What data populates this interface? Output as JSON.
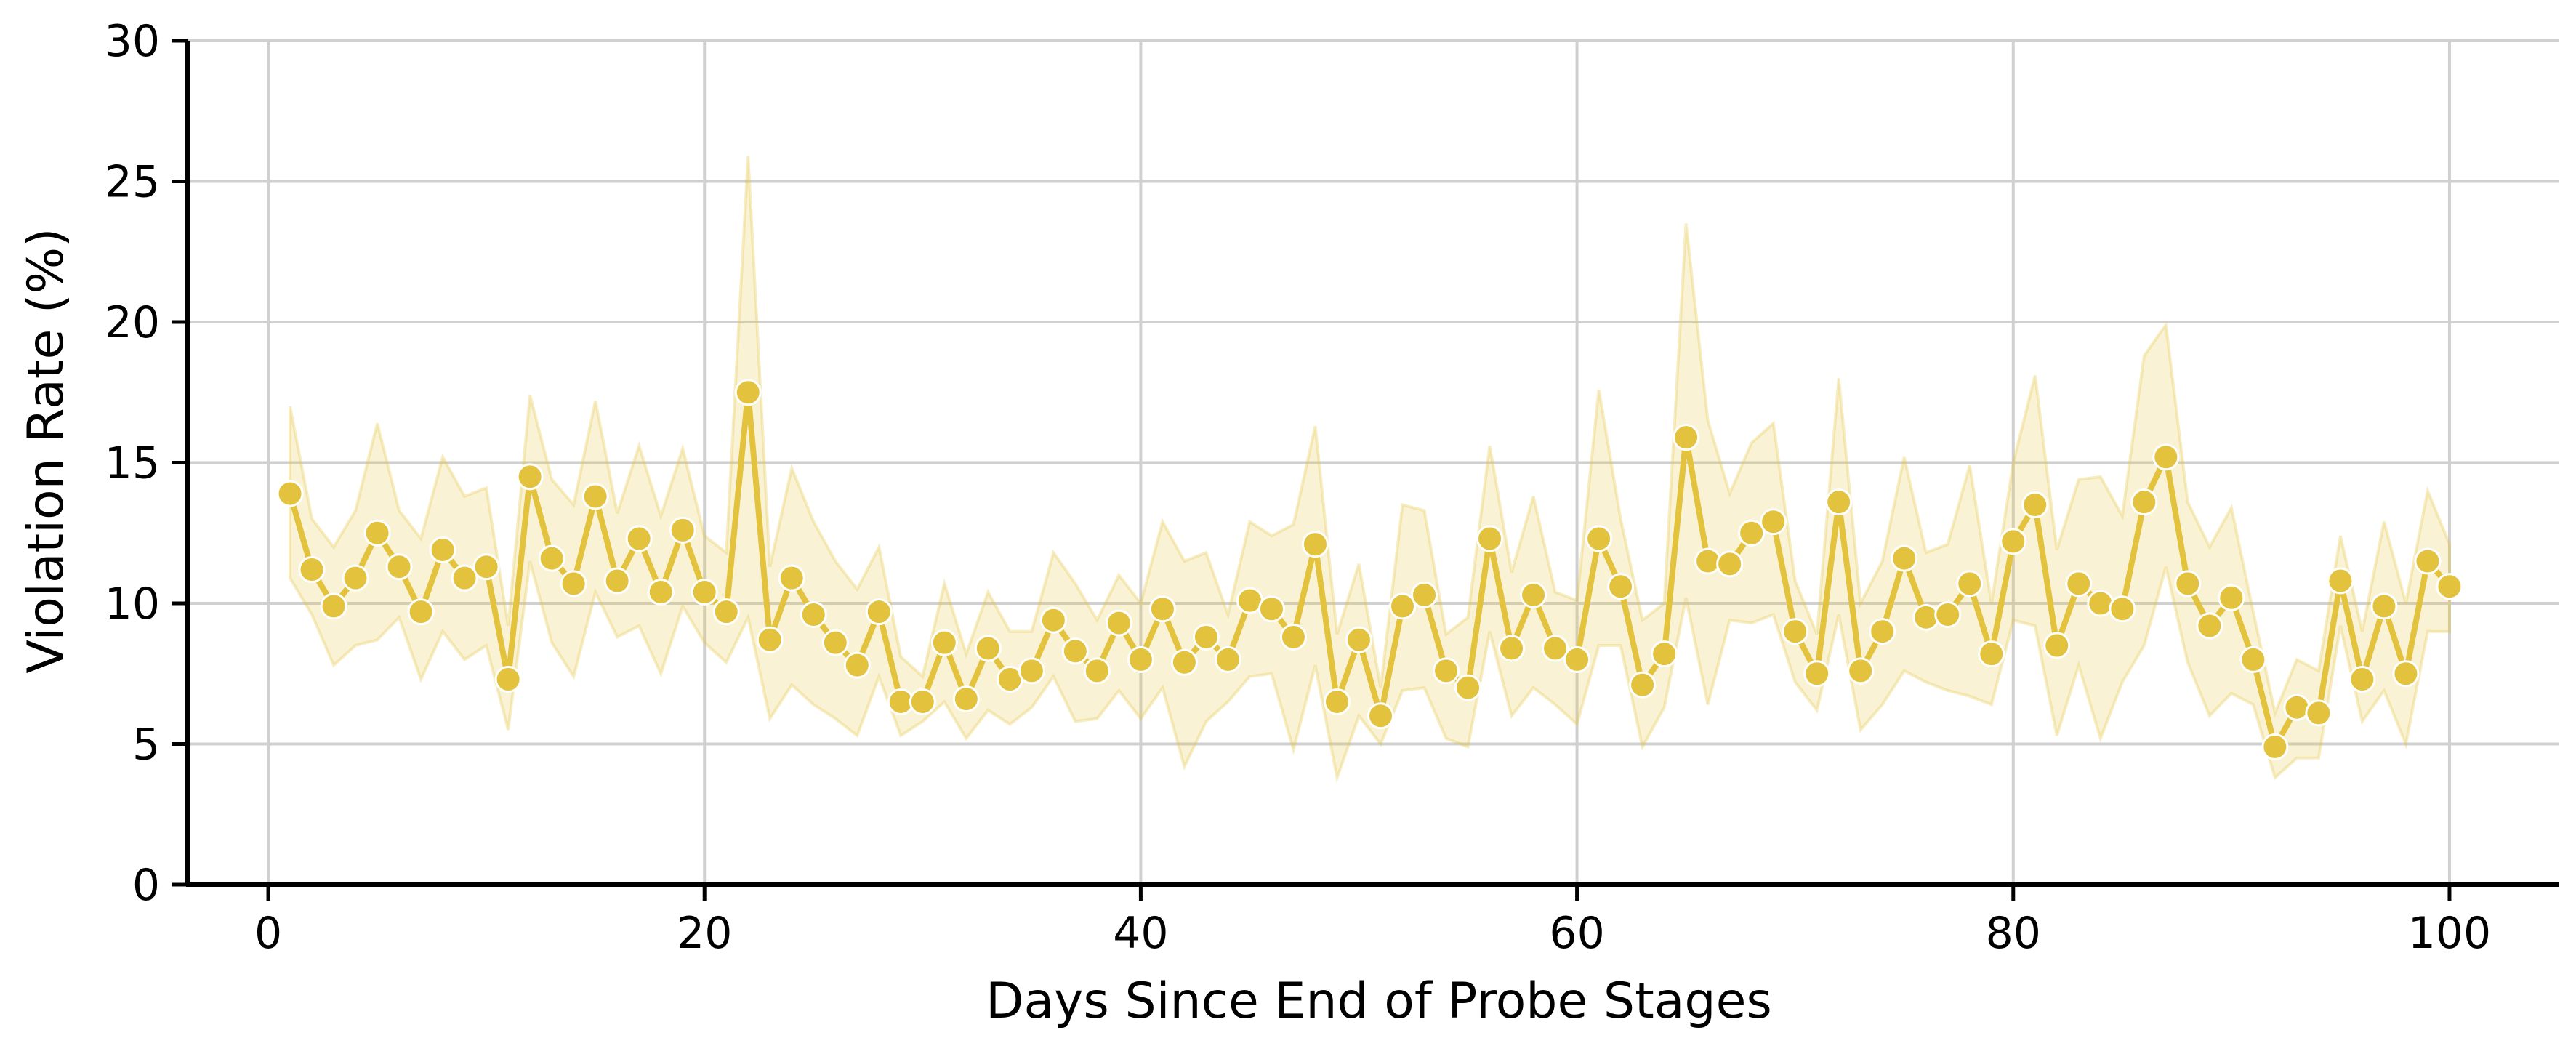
{
  "chart_data": {
    "type": "line",
    "title": "",
    "xlabel": "Days Since End of Probe Stages",
    "ylabel": "Violation Rate (%)",
    "xlim": [
      -3.7,
      105
    ],
    "ylim": [
      0,
      30
    ],
    "xticks": [
      0,
      20,
      40,
      60,
      80,
      100
    ],
    "yticks": [
      0,
      5,
      10,
      15,
      20,
      25,
      30
    ],
    "grid": true,
    "legend": "none",
    "marker": "circle",
    "colors": {
      "line": "#E3C23E",
      "marker": "#E3C23E",
      "marker_edge": "#FFFFFF",
      "band": "#E3C23E",
      "grid": "#D0D0D0",
      "axis": "#000000"
    },
    "series": [
      {
        "x": [
          1,
          2,
          3,
          4,
          5,
          6,
          7,
          8,
          9,
          10,
          11,
          12,
          13,
          14,
          15,
          16,
          17,
          18,
          19,
          20,
          21,
          22,
          23,
          24,
          25,
          26,
          27,
          28,
          29,
          30,
          31,
          32,
          33,
          34,
          35,
          36,
          37,
          38,
          39,
          40,
          41,
          42,
          43,
          44,
          45,
          46,
          47,
          48,
          49,
          50,
          51,
          52,
          53,
          54,
          55,
          56,
          57,
          58,
          59,
          60,
          61,
          62,
          63,
          64,
          65,
          66,
          67,
          68,
          69,
          70,
          71,
          72,
          73,
          74,
          75,
          76,
          77,
          78,
          79,
          80,
          81,
          82,
          83,
          84,
          85,
          86,
          87,
          88,
          89,
          90,
          91,
          92,
          93,
          94,
          95,
          96,
          97,
          98,
          99,
          100
        ],
        "y": [
          13.9,
          11.2,
          9.9,
          10.9,
          12.5,
          11.3,
          9.7,
          11.9,
          10.9,
          11.3,
          7.3,
          14.5,
          11.6,
          10.7,
          13.8,
          10.8,
          12.3,
          10.4,
          12.6,
          10.4,
          9.7,
          17.5,
          8.7,
          10.9,
          9.6,
          8.6,
          7.8,
          9.7,
          6.5,
          6.5,
          8.6,
          6.6,
          8.4,
          7.3,
          7.6,
          9.4,
          8.3,
          7.6,
          9.3,
          8.0,
          9.8,
          7.9,
          8.8,
          8.0,
          10.1,
          9.8,
          8.8,
          12.1,
          6.5,
          8.7,
          6.0,
          9.9,
          10.3,
          7.6,
          7.0,
          12.3,
          8.4,
          10.3,
          8.4,
          8.0,
          12.3,
          10.6,
          7.1,
          8.2,
          15.9,
          11.5,
          11.4,
          12.5,
          12.9,
          9.0,
          7.5,
          13.6,
          7.6,
          9.0,
          11.6,
          9.5,
          9.6,
          10.7,
          8.2,
          12.2,
          13.5,
          8.5,
          10.7,
          10.0,
          9.8,
          13.6,
          15.2,
          10.7,
          9.2,
          10.2,
          8.0,
          4.9,
          6.3,
          6.1,
          10.8,
          7.3,
          9.9,
          7.5,
          11.5,
          10.6
        ],
        "ci_lower": [
          10.9,
          9.6,
          7.8,
          8.5,
          8.7,
          9.5,
          7.3,
          9.0,
          8.0,
          8.5,
          5.5,
          11.5,
          8.6,
          7.4,
          10.4,
          8.8,
          9.2,
          7.5,
          9.9,
          8.6,
          7.9,
          9.5,
          5.9,
          7.1,
          6.4,
          5.9,
          5.3,
          7.4,
          5.3,
          5.8,
          6.5,
          5.2,
          6.2,
          5.7,
          6.3,
          7.4,
          5.8,
          5.9,
          6.9,
          5.9,
          7.0,
          4.2,
          5.8,
          6.5,
          7.4,
          7.5,
          4.8,
          7.8,
          3.8,
          6.0,
          5.0,
          6.9,
          7.0,
          5.2,
          4.9,
          9.0,
          6.0,
          7.0,
          6.4,
          5.7,
          8.5,
          8.5,
          4.9,
          6.3,
          10.2,
          6.4,
          9.4,
          9.3,
          9.6,
          7.2,
          6.2,
          9.6,
          5.5,
          6.4,
          7.6,
          7.2,
          6.9,
          6.7,
          6.4,
          9.4,
          9.2,
          5.3,
          7.8,
          5.2,
          7.2,
          8.5,
          11.3,
          7.9,
          6.0,
          6.8,
          6.4,
          3.8,
          4.5,
          4.5,
          9.2,
          5.8,
          6.9,
          5.0,
          9.0,
          9.0
        ],
        "ci_upper": [
          17.0,
          13.0,
          12.0,
          13.3,
          16.4,
          13.3,
          12.3,
          15.2,
          13.8,
          14.1,
          9.2,
          17.4,
          14.4,
          13.5,
          17.2,
          13.2,
          15.6,
          13.1,
          15.5,
          12.4,
          11.8,
          25.9,
          11.3,
          14.8,
          12.9,
          11.5,
          10.5,
          12.0,
          8.1,
          7.4,
          10.7,
          8.2,
          10.4,
          9.0,
          9.0,
          11.8,
          10.7,
          9.4,
          11.0,
          10.0,
          12.9,
          11.5,
          11.8,
          9.6,
          12.9,
          12.4,
          12.8,
          16.3,
          8.9,
          11.4,
          7.0,
          13.5,
          13.3,
          8.9,
          9.5,
          15.6,
          11.1,
          13.8,
          10.4,
          10.1,
          17.6,
          13.0,
          9.4,
          10.0,
          23.5,
          16.5,
          13.9,
          15.7,
          16.4,
          10.8,
          8.9,
          18.0,
          10.0,
          11.5,
          15.2,
          11.8,
          12.1,
          14.9,
          10.0,
          15.0,
          18.1,
          11.9,
          14.4,
          14.5,
          13.1,
          18.8,
          19.9,
          13.6,
          12.0,
          13.4,
          9.7,
          6.1,
          8.0,
          7.6,
          12.4,
          9.0,
          12.9,
          10.0,
          14.0,
          12.1
        ]
      }
    ]
  }
}
